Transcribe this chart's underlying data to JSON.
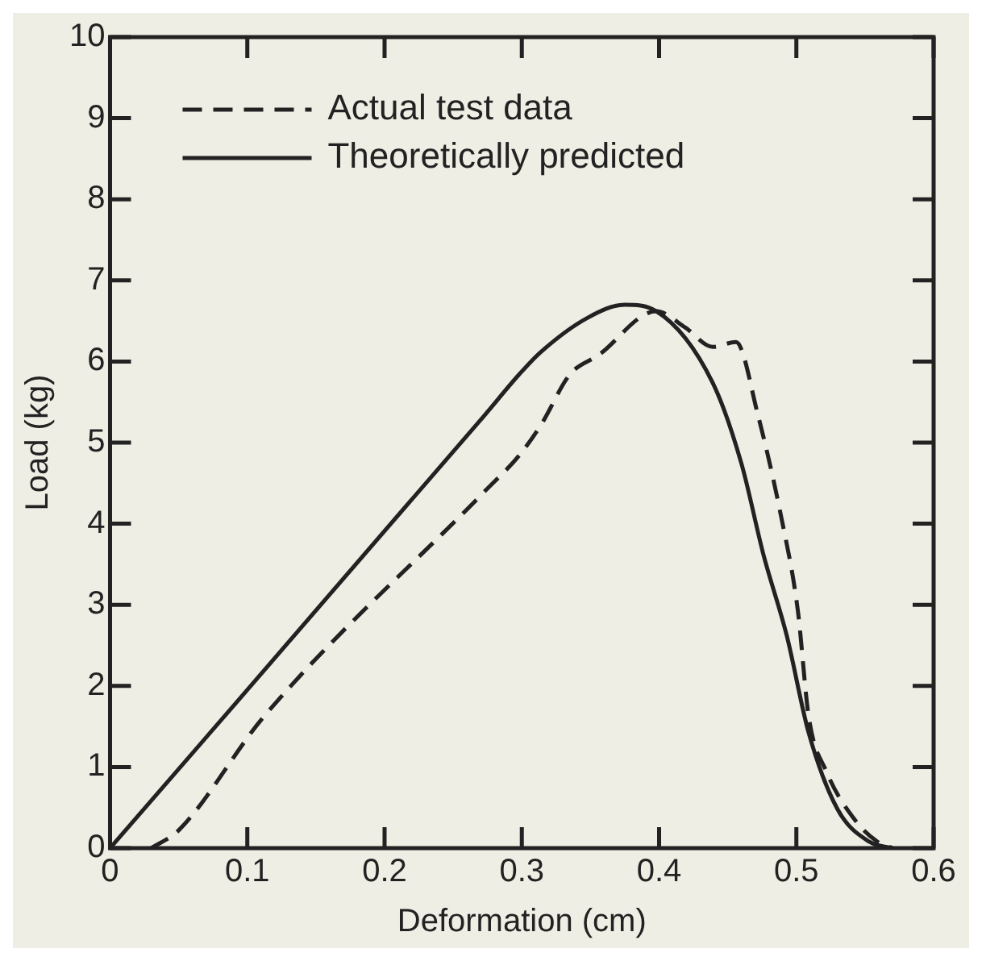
{
  "chart_data": {
    "type": "line",
    "xlabel": "Deformation (cm)",
    "ylabel": "Load (kg)",
    "xlim": [
      0,
      0.6
    ],
    "xticks": [
      0,
      0.1,
      0.2,
      0.3,
      0.4,
      0.5,
      0.6
    ],
    "ylim": [
      0,
      10
    ],
    "yticks": [
      0,
      1,
      2,
      3,
      4,
      5,
      6,
      7,
      8,
      9,
      10
    ],
    "grid": false,
    "legend": "top left",
    "marker": "none",
    "series": [
      {
        "name": "Actual test data",
        "color": "#222222",
        "line_style": "dashed",
        "x": [
          0.03,
          0.05,
          0.112,
          0.273,
          0.298,
          0.314,
          0.335,
          0.356,
          0.398,
          0.419,
          0.439,
          0.456,
          0.472,
          0.489,
          0.501,
          0.509,
          0.522,
          0.543,
          0.559,
          0.57
        ],
        "values": [
          0,
          0.22,
          1.62,
          4.4,
          4.84,
          5.22,
          5.84,
          6.08,
          6.62,
          6.42,
          6.18,
          6.24,
          5.34,
          4.08,
          2.94,
          1.62,
          0.94,
          0.34,
          0.08,
          0
        ]
      },
      {
        "name": "Theoretically predicted",
        "color": "#222222",
        "line_style": "solid",
        "x": [
          0,
          0.273,
          0.298,
          0.314,
          0.348,
          0.375,
          0.398,
          0.439,
          0.46,
          0.476,
          0.493,
          0.509,
          0.53,
          0.553,
          0.57
        ],
        "values": [
          0,
          5.34,
          5.84,
          6.12,
          6.54,
          6.7,
          6.62,
          5.74,
          4.74,
          3.62,
          2.62,
          1.42,
          0.48,
          0.08,
          0
        ]
      }
    ]
  }
}
